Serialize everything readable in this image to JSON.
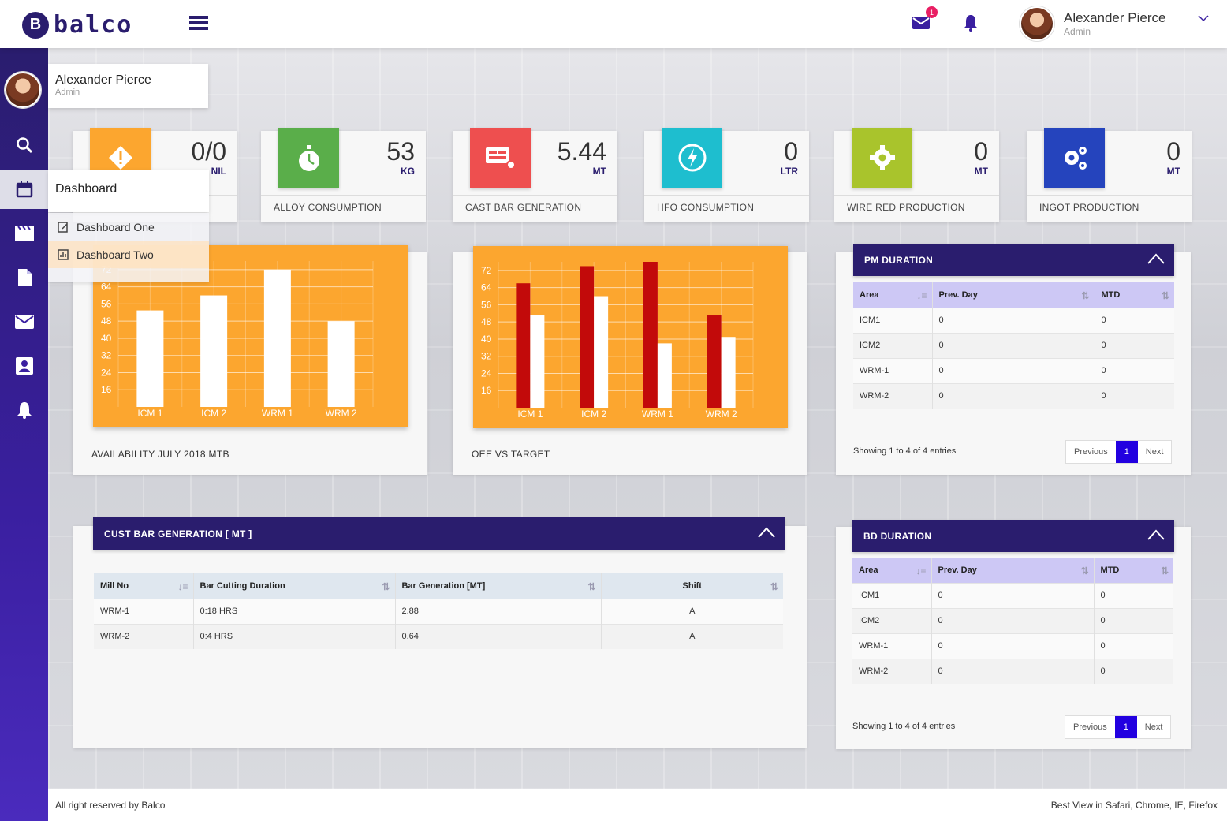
{
  "header": {
    "logo_mark": "B",
    "logo_text": "balco",
    "mail_badge": "1",
    "user_name": "Alexander Pierce",
    "user_role": "Admin"
  },
  "sidebar": {
    "profile_name": "Alexander Pierce",
    "profile_role": "Admin",
    "dashboard_label": "Dashboard",
    "submenu": [
      "Dashboard One",
      "Dashboard Two"
    ]
  },
  "stats": [
    {
      "value": "0/0",
      "unit": "NIL",
      "label": "",
      "color": "#fca62f",
      "icon": "warning-icon"
    },
    {
      "value": "53",
      "unit": "KG",
      "label": "ALLOY CONSUMPTION",
      "color": "#5aae4a",
      "icon": "stopwatch-icon"
    },
    {
      "value": "5.44",
      "unit": "MT",
      "label": "CAST BAR GENERATION",
      "color": "#ee4f4f",
      "icon": "machine-icon"
    },
    {
      "value": "0",
      "unit": "LTR",
      "label": "HFO CONSUMPTION",
      "color": "#1ebecf",
      "icon": "power-icon"
    },
    {
      "value": "0",
      "unit": "MT",
      "label": "WIRE RED PRODUCTION",
      "color": "#a9c42c",
      "icon": "gear-icon"
    },
    {
      "value": "0",
      "unit": "MT",
      "label": "INGOT PRODUCTION",
      "color": "#2544bd",
      "icon": "gears-icon"
    }
  ],
  "chart_data": [
    {
      "type": "bar",
      "title": "AVAILABILITY JULY 2018 MTB",
      "categories": [
        "ICM 1",
        "ICM 2",
        "WRM 1",
        "WRM 2"
      ],
      "yticks": [
        "16",
        "24",
        "32",
        "40",
        "48",
        "56",
        "64",
        "72"
      ],
      "ylim": [
        8,
        76
      ],
      "series": [
        {
          "name": "Availability",
          "values": [
            53,
            60,
            72,
            48
          ],
          "color": "#ffffff"
        }
      ]
    },
    {
      "type": "bar",
      "title": "OEE VS TARGET",
      "categories": [
        "ICM 1",
        "ICM 2",
        "WRM 1",
        "WRM 2"
      ],
      "yticks": [
        "16",
        "24",
        "32",
        "40",
        "48",
        "56",
        "64",
        "72"
      ],
      "ylim": [
        8,
        76
      ],
      "series": [
        {
          "name": "OEE",
          "values": [
            66,
            74,
            76,
            51
          ],
          "color": "#c20a0a"
        },
        {
          "name": "Target",
          "values": [
            51,
            60,
            38,
            41
          ],
          "color": "#ffffff"
        }
      ]
    }
  ],
  "pm": {
    "title": "PM DURATION",
    "headers": [
      "Area",
      "Prev. Day",
      "MTD"
    ],
    "rows": [
      [
        "ICM1",
        "0",
        "0"
      ],
      [
        "ICM2",
        "0",
        "0"
      ],
      [
        "WRM-1",
        "0",
        "0"
      ],
      [
        "WRM-2",
        "0",
        "0"
      ]
    ],
    "showing": "Showing 1 to 4 of 4 entries",
    "prev": "Previous",
    "page": "1",
    "next": "Next"
  },
  "bd": {
    "title": "BD DURATION",
    "headers": [
      "Area",
      "Prev. Day",
      "MTD"
    ],
    "rows": [
      [
        "ICM1",
        "0",
        "0"
      ],
      [
        "ICM2",
        "0",
        "0"
      ],
      [
        "WRM-1",
        "0",
        "0"
      ],
      [
        "WRM-2",
        "0",
        "0"
      ]
    ],
    "showing": "Showing 1 to 4 of 4 entries",
    "prev": "Previous",
    "page": "1",
    "next": "Next"
  },
  "cust": {
    "title": "CUST BAR GENERATION [ MT ]",
    "headers": [
      "Mill No",
      "Bar Cutting Duration",
      "Bar Generation [MT]",
      "Shift"
    ],
    "rows": [
      [
        "WRM-1",
        "0:18 HRS",
        "2.88",
        "A"
      ],
      [
        "WRM-2",
        "0:4 HRS",
        "0.64",
        "A"
      ]
    ]
  },
  "footer": {
    "left": "All right reserved by Balco",
    "right": "Best View in Safari, Chrome, IE, Firefox"
  }
}
